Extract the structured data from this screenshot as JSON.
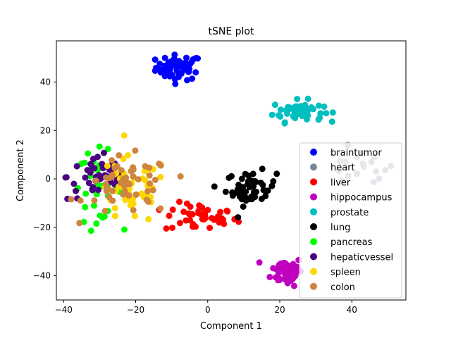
{
  "chart_data": {
    "type": "scatter",
    "title": "tSNE plot",
    "xlabel": "Component 1",
    "ylabel": "Component 2",
    "xlim": [
      -42,
      55
    ],
    "ylim": [
      -50,
      57
    ],
    "xticks": [
      -40,
      -20,
      0,
      20,
      40
    ],
    "yticks": [
      -40,
      -20,
      0,
      20,
      40
    ],
    "xtick_labels": [
      "−40",
      "−20",
      "0",
      "20",
      "40"
    ],
    "ytick_labels": [
      "−40",
      "−20",
      "0",
      "20",
      "40"
    ],
    "grid": false,
    "legend_position": "lower-right",
    "series": [
      {
        "name": "braintumor",
        "color": "#0000ff",
        "clusters": [
          {
            "cx": -8,
            "cy": 46,
            "sx": 3.2,
            "sy": 2.6,
            "n": 60
          }
        ]
      },
      {
        "name": "heart",
        "color": "#778899",
        "clusters": [
          {
            "cx": 42,
            "cy": 4,
            "sx": 5.0,
            "sy": 4.0,
            "n": 18
          }
        ]
      },
      {
        "name": "liver",
        "color": "#ff0000",
        "clusters": [
          {
            "cx": -2,
            "cy": -16,
            "sx": 5.0,
            "sy": 3.0,
            "n": 45
          }
        ]
      },
      {
        "name": "hippocampus",
        "color": "#bf00bf",
        "clusters": [
          {
            "cx": 22,
            "cy": -38,
            "sx": 2.2,
            "sy": 3.0,
            "n": 55
          }
        ]
      },
      {
        "name": "prostate",
        "color": "#00bfbf",
        "clusters": [
          {
            "cx": 25,
            "cy": 28,
            "sx": 3.5,
            "sy": 2.2,
            "n": 55
          }
        ]
      },
      {
        "name": "lung",
        "color": "#000000",
        "clusters": [
          {
            "cx": 12,
            "cy": -4,
            "sx": 3.5,
            "sy": 3.5,
            "n": 50
          }
        ]
      },
      {
        "name": "pancreas",
        "color": "#00ff00",
        "clusters": [
          {
            "cx": -31,
            "cy": -3,
            "sx": 3.5,
            "sy": 7,
            "n": 35
          }
        ]
      },
      {
        "name": "hepaticvessel",
        "color": "#4b0082",
        "clusters": [
          {
            "cx": -30,
            "cy": 1,
            "sx": 4.5,
            "sy": 5,
            "n": 45
          }
        ]
      },
      {
        "name": "spleen",
        "color": "#ffd700",
        "clusters": [
          {
            "cx": -21,
            "cy": -5,
            "sx": 5.0,
            "sy": 7,
            "n": 45
          }
        ]
      },
      {
        "name": "colon",
        "color": "#cd853f",
        "clusters": [
          {
            "cx": -22,
            "cy": -3,
            "sx": 6.0,
            "sy": 6,
            "n": 55
          }
        ]
      }
    ]
  }
}
